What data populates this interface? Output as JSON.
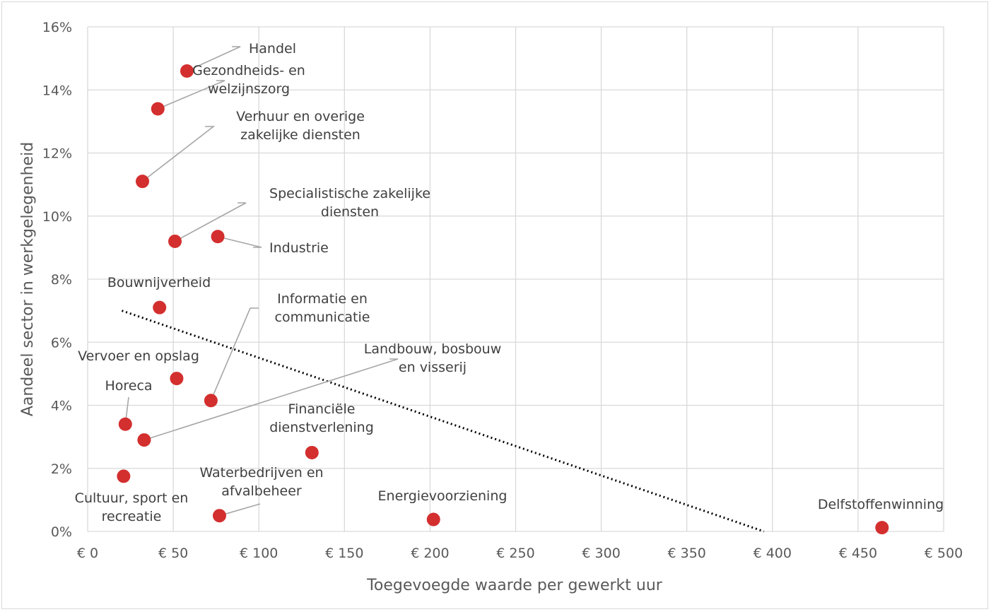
{
  "chart_data": {
    "type": "scatter",
    "title": "",
    "xlabel": "Toegevoegde waarde per gewerkt uur",
    "ylabel": "Aandeel sector in werkgelegenheid",
    "xlim": [
      0,
      500
    ],
    "ylim": [
      0,
      16
    ],
    "x_ticks": [
      "€ 0",
      "€ 50",
      "€ 100",
      "€ 150",
      "€ 200",
      "€ 250",
      "€ 300",
      "€ 350",
      "€ 400",
      "€ 450",
      "€ 500"
    ],
    "y_ticks": [
      "0%",
      "2%",
      "4%",
      "6%",
      "8%",
      "10%",
      "12%",
      "14%",
      "16%"
    ],
    "grid": true,
    "marker_color": "#d32f2f",
    "points": [
      {
        "label": [
          "Handel"
        ],
        "x": 58,
        "y": 14.6
      },
      {
        "label": [
          "Gezondheids- en",
          "welzijnszorg"
        ],
        "x": 41,
        "y": 13.4
      },
      {
        "label": [
          "Verhuur en overige",
          "zakelijke diensten"
        ],
        "x": 32,
        "y": 11.1
      },
      {
        "label": [
          "Specialistische zakelijke",
          "diensten"
        ],
        "x": 51,
        "y": 9.2
      },
      {
        "label": [
          "Industrie"
        ],
        "x": 76,
        "y": 9.35
      },
      {
        "label": [
          "Bouwnijverheid"
        ],
        "x": 42,
        "y": 7.1
      },
      {
        "label": [
          "Informatie en",
          "communicatie"
        ],
        "x": 72,
        "y": 4.15
      },
      {
        "label": [
          "Vervoer en opslag"
        ],
        "x": 52,
        "y": 4.85
      },
      {
        "label": [
          "Landbouw, bosbouw",
          "en visserij"
        ],
        "x": 33,
        "y": 2.9
      },
      {
        "label": [
          "Horeca"
        ],
        "x": 22,
        "y": 3.4
      },
      {
        "label": [
          "Cultuur, sport en",
          "recreatie"
        ],
        "x": 21,
        "y": 1.75
      },
      {
        "label": [
          "Financiële",
          "dienstverlening"
        ],
        "x": 131,
        "y": 2.5
      },
      {
        "label": [
          "Waterbedrijven en",
          "afvalbeheer"
        ],
        "x": 77,
        "y": 0.5
      },
      {
        "label": [
          "Energievoorziening"
        ],
        "x": 202,
        "y": 0.38
      },
      {
        "label": [
          "Delfstoffenwinning"
        ],
        "x": 464,
        "y": 0.12
      }
    ],
    "trendline": {
      "style": "dotted",
      "color": "#000000",
      "from": [
        20,
        7.0
      ],
      "to": [
        395,
        0.0
      ]
    }
  }
}
